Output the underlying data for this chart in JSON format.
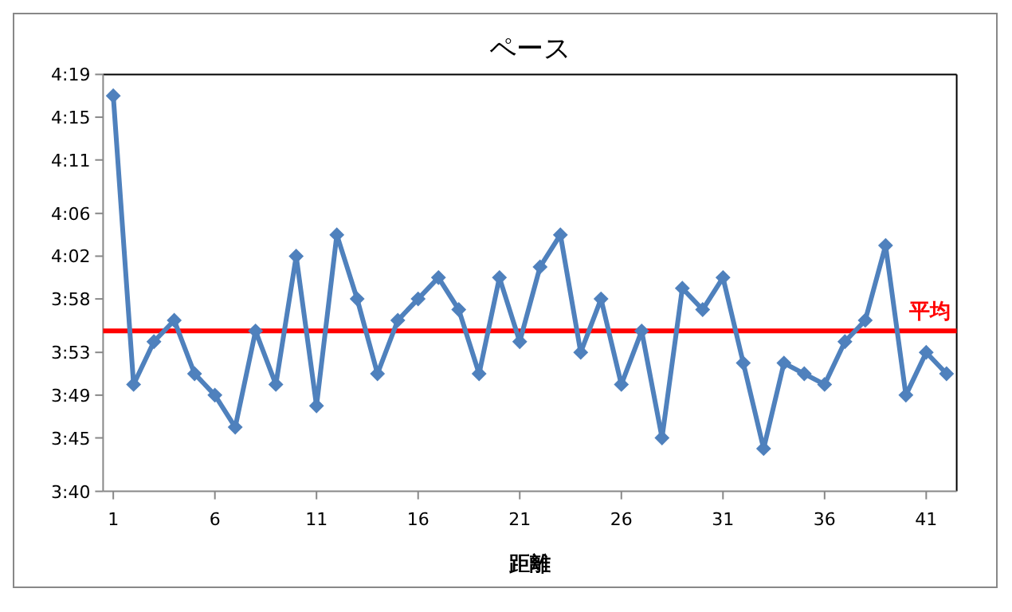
{
  "chart_data": {
    "type": "line",
    "title": "ペース",
    "xlabel": "距離",
    "x": [
      1,
      2,
      3,
      4,
      5,
      6,
      7,
      8,
      9,
      10,
      11,
      12,
      13,
      14,
      15,
      16,
      17,
      18,
      19,
      20,
      21,
      22,
      23,
      24,
      25,
      26,
      27,
      28,
      29,
      30,
      31,
      32,
      33,
      34,
      35,
      36,
      37,
      38,
      39,
      40,
      41,
      42
    ],
    "xlim": [
      0.5,
      42.5
    ],
    "xticks": [
      1,
      6,
      11,
      16,
      21,
      26,
      31,
      36,
      41
    ],
    "series": [
      {
        "color": "#4f81bd",
        "values": [
          257,
          230,
          234,
          236,
          231,
          229,
          226,
          235,
          230,
          242,
          228,
          244,
          238,
          231,
          236,
          238,
          240,
          237,
          231,
          240,
          234,
          241,
          244,
          233,
          238,
          230,
          235,
          225,
          239,
          237,
          240,
          232,
          224,
          232,
          231,
          230,
          234,
          236,
          243,
          229,
          233,
          231
        ]
      }
    ],
    "ylim": [
      220,
      259
    ],
    "yticks": [
      {
        "value": 220,
        "label": "3:40"
      },
      {
        "value": 225,
        "label": "3:45"
      },
      {
        "value": 229,
        "label": "3:49"
      },
      {
        "value": 233,
        "label": "3:53"
      },
      {
        "value": 238,
        "label": "3:58"
      },
      {
        "value": 242,
        "label": "4:02"
      },
      {
        "value": 246,
        "label": "4:06"
      },
      {
        "value": 251,
        "label": "4:11"
      },
      {
        "value": 255,
        "label": "4:15"
      },
      {
        "value": 259,
        "label": "4:19"
      }
    ],
    "ref_lines": [
      {
        "axis": "y",
        "value": 235,
        "label": "平均",
        "color": "#ff0000"
      }
    ],
    "marker": "diamond"
  }
}
